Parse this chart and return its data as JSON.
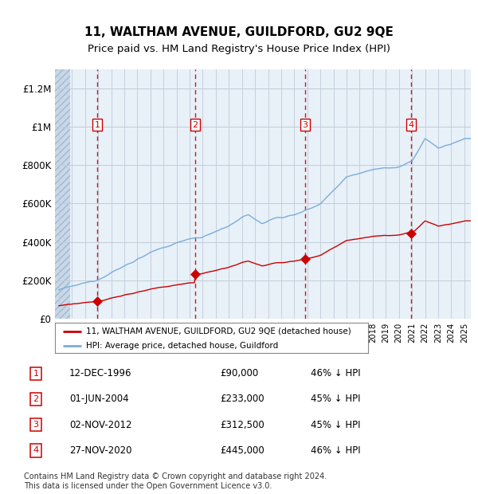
{
  "title": "11, WALTHAM AVENUE, GUILDFORD, GU2 9QE",
  "subtitle": "Price paid vs. HM Land Registry's House Price Index (HPI)",
  "ylabel_values": [
    0,
    200000,
    400000,
    600000,
    800000,
    1000000,
    1200000
  ],
  "ylabel_labels": [
    "£0",
    "£200K",
    "£400K",
    "£600K",
    "£800K",
    "£1M",
    "£1.2M"
  ],
  "xlim_left": 1993.7,
  "xlim_right": 2025.5,
  "ylim": [
    0,
    1300000
  ],
  "sales": [
    {
      "num": 1,
      "date": "12-DEC-1996",
      "year": 1996.95,
      "price": 90000,
      "label": "46% ↓ HPI"
    },
    {
      "num": 2,
      "date": "01-JUN-2004",
      "year": 2004.42,
      "price": 233000,
      "label": "45% ↓ HPI"
    },
    {
      "num": 3,
      "date": "02-NOV-2012",
      "year": 2012.84,
      "price": 312500,
      "label": "45% ↓ HPI"
    },
    {
      "num": 4,
      "date": "27-NOV-2020",
      "year": 2020.91,
      "price": 445000,
      "label": "46% ↓ HPI"
    }
  ],
  "hpi_color": "#7aaddc",
  "price_color": "#cc0000",
  "plot_bg": "#e8f0f8",
  "legend_label_price": "11, WALTHAM AVENUE, GUILDFORD, GU2 9QE (detached house)",
  "legend_label_hpi": "HPI: Average price, detached house, Guildford",
  "footer": "Contains HM Land Registry data © Crown copyright and database right 2024.\nThis data is licensed under the Open Government Licence v3.0.",
  "title_fontsize": 11,
  "subtitle_fontsize": 9.5,
  "hatch_end": 1994.83
}
